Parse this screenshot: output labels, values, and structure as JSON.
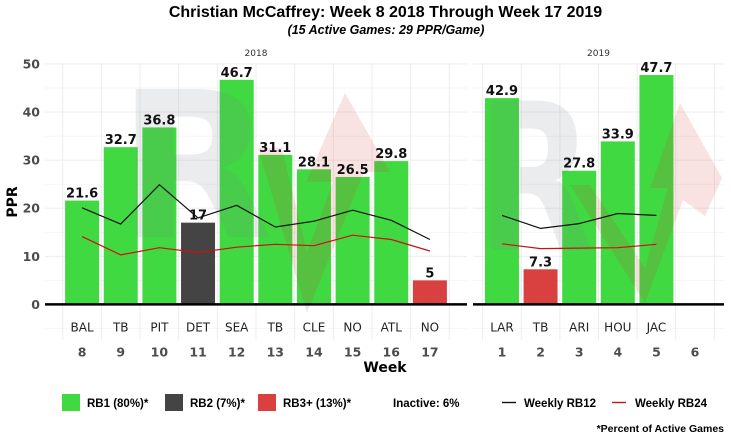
{
  "chart_data": {
    "type": "bar",
    "title": "Christian McCaffrey: Week 8 2018 Through Week 17 2019",
    "subtitle": "(15 Active Games: 29 PPR/Game)",
    "xlabel": "Week",
    "ylabel": "PPR",
    "ylim": [
      -7.4,
      50.2
    ],
    "yticks": [
      0,
      10,
      20,
      30,
      40,
      50
    ],
    "grid": true,
    "legend_position": "bottom",
    "colors": {
      "RB1": "#41d941",
      "RB2": "#444444",
      "RB3+": "#d94141",
      "rb12": "#111111",
      "rb24": "#cc1111"
    },
    "panels": [
      {
        "label": "2018",
        "xlim": [
          7.04,
          17.96
        ],
        "weeks": [
          8,
          9,
          10,
          11,
          12,
          13,
          14,
          15,
          16,
          17
        ],
        "games": [
          {
            "week": 8,
            "opponent": "BAL",
            "ppr": 21.6,
            "tier": "RB1"
          },
          {
            "week": 9,
            "opponent": "TB",
            "ppr": 32.7,
            "tier": "RB1"
          },
          {
            "week": 10,
            "opponent": "PIT",
            "ppr": 36.8,
            "tier": "RB1"
          },
          {
            "week": 11,
            "opponent": "DET",
            "ppr": 17,
            "tier": "RB2"
          },
          {
            "week": 12,
            "opponent": "SEA",
            "ppr": 46.7,
            "tier": "RB1"
          },
          {
            "week": 13,
            "opponent": "TB",
            "ppr": 31.1,
            "tier": "RB1"
          },
          {
            "week": 14,
            "opponent": "CLE",
            "ppr": 28.1,
            "tier": "RB1"
          },
          {
            "week": 15,
            "opponent": "NO",
            "ppr": 26.5,
            "tier": "RB1"
          },
          {
            "week": 16,
            "opponent": "ATL",
            "ppr": 29.8,
            "tier": "RB1"
          },
          {
            "week": 17,
            "opponent": "NO",
            "ppr": 5,
            "tier": "RB3+"
          }
        ],
        "rb12": [
          20.1,
          16.7,
          24.9,
          18.0,
          20.6,
          16.1,
          17.3,
          19.6,
          17.5,
          13.5
        ],
        "rb24": [
          14.1,
          10.3,
          11.8,
          10.8,
          11.9,
          12.5,
          12.2,
          14.4,
          13.5,
          11.1
        ]
      },
      {
        "label": "2019",
        "xlim": [
          0.25,
          6.75
        ],
        "weeks": [
          1,
          2,
          3,
          4,
          5,
          6
        ],
        "games": [
          {
            "week": 1,
            "opponent": "LAR",
            "ppr": 42.9,
            "tier": "RB1"
          },
          {
            "week": 2,
            "opponent": "TB",
            "ppr": 7.3,
            "tier": "RB3+"
          },
          {
            "week": 3,
            "opponent": "ARI",
            "ppr": 27.8,
            "tier": "RB1"
          },
          {
            "week": 4,
            "opponent": "HOU",
            "ppr": 33.9,
            "tier": "RB1"
          },
          {
            "week": 5,
            "opponent": "JAC",
            "ppr": 47.7,
            "tier": "RB1"
          }
        ],
        "rb12": [
          18.5,
          15.8,
          16.8,
          18.9,
          18.5
        ],
        "rb24": [
          12.6,
          11.6,
          11.7,
          11.8,
          12.5
        ]
      }
    ]
  },
  "legend": {
    "items": [
      {
        "label": "RB1 (80%)*",
        "color": "#41d941"
      },
      {
        "label": "RB2 (7%)*",
        "color": "#444444"
      },
      {
        "label": "RB3+ (13%)*",
        "color": "#d94141"
      }
    ],
    "inactive_label": "Inactive: 6%",
    "lines": [
      {
        "label": "Weekly RB12",
        "color": "#111111"
      },
      {
        "label": "Weekly RB24",
        "color": "#cc1111"
      }
    ]
  },
  "footnote": "*Percent of Active Games"
}
